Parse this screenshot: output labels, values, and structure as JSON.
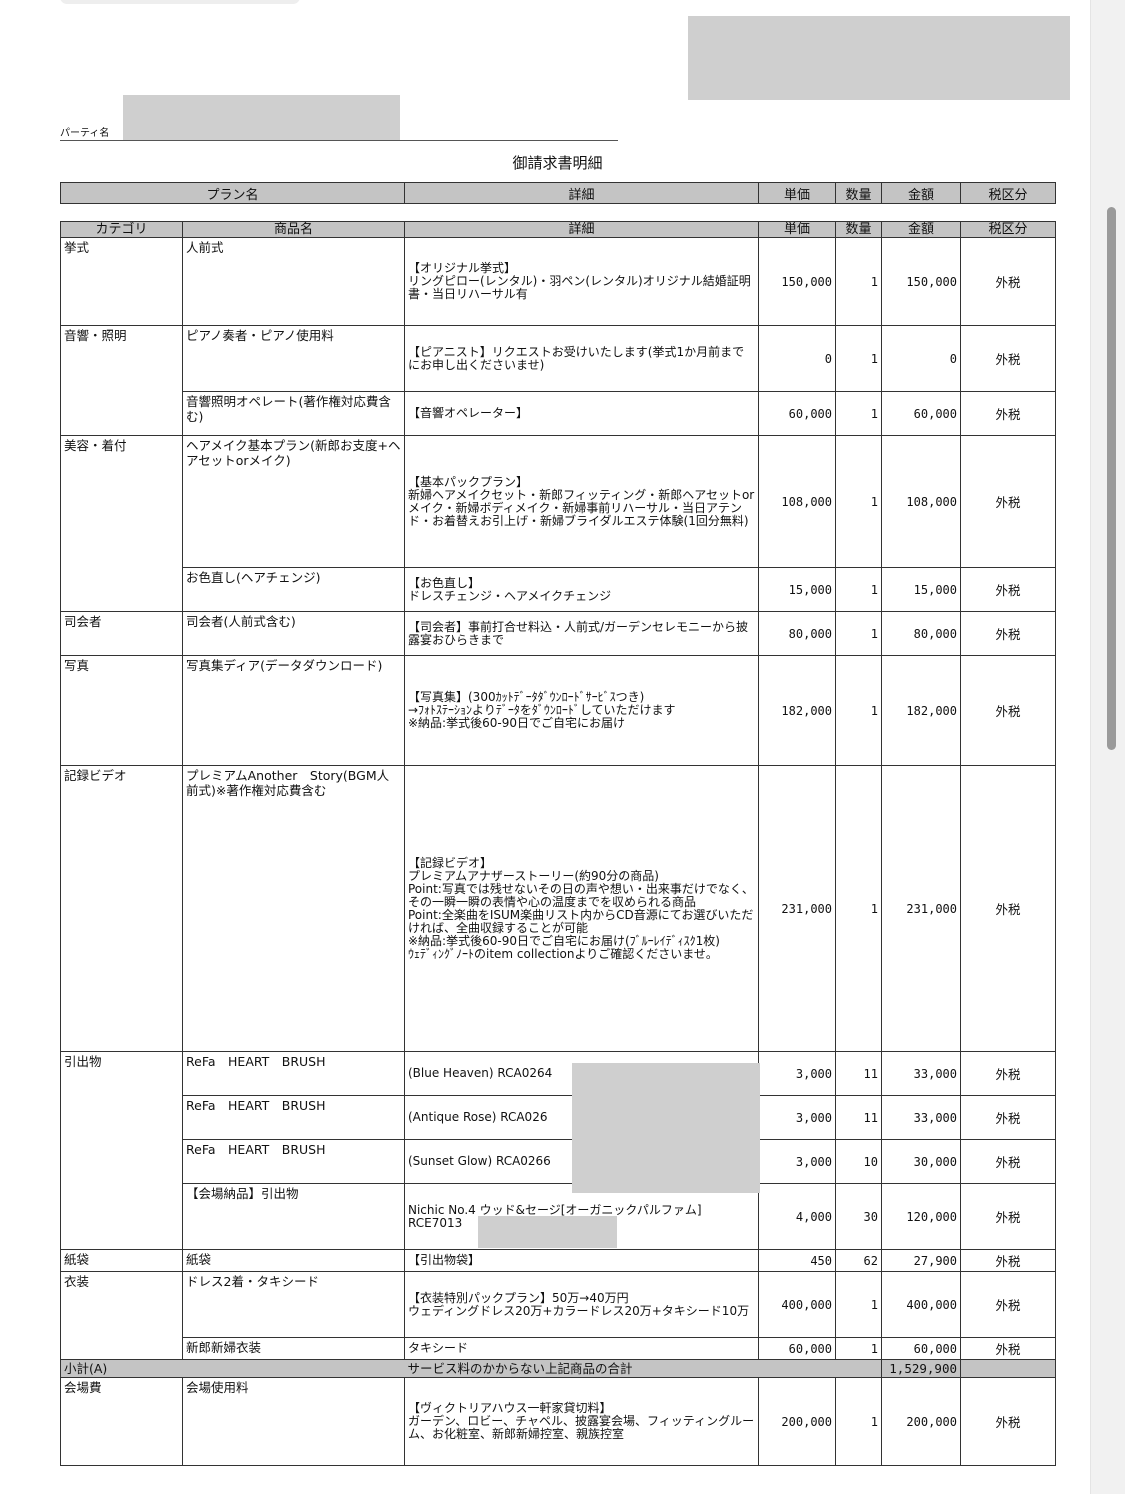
{
  "party_label": "パーティ名",
  "title": "御請求書明細",
  "plan_header": [
    "プラン名",
    "詳細",
    "単価",
    "数量",
    "金額",
    "税区分"
  ],
  "items_header": [
    "カテゴリ",
    "商品名",
    "詳細",
    "単価",
    "数量",
    "金額",
    "税区分"
  ],
  "groups": [
    {
      "category": "挙式",
      "items": [
        {
          "name": "人前式",
          "detail": "【オリジナル挙式】\nリングピロー(レンタル)・羽ペン(レンタル)オリジナル結婚証明書・当日リハーサル有",
          "unit_price": "150,000",
          "qty": "1",
          "amount": "150,000",
          "tax": "外税"
        }
      ]
    },
    {
      "category": "音響・照明",
      "items": [
        {
          "name": "ピアノ奏者・ピアノ使用料",
          "detail": "【ピアニスト】リクエストお受けいたします(挙式1か月前までにお申し出くださいませ)",
          "unit_price": "0",
          "qty": "1",
          "amount": "0",
          "tax": "外税"
        },
        {
          "name": "音響照明オペレート(著作権対応費含む)",
          "detail": "【音響オペレーター】",
          "unit_price": "60,000",
          "qty": "1",
          "amount": "60,000",
          "tax": "外税"
        }
      ]
    },
    {
      "category": "美容・着付",
      "items": [
        {
          "name": "ヘアメイク基本プラン(新郎お支度+ヘアセットorメイク)",
          "detail": "【基本パックプラン】\n新婦ヘアメイクセット・新郎フィッティング・新郎ヘアセットorメイク・新婦ボディメイク・新婦事前リハーサル・当日アテンド・お着替えお引上げ・新婦ブライダルエステ体験(1回分無料)",
          "unit_price": "108,000",
          "qty": "1",
          "amount": "108,000",
          "tax": "外税"
        },
        {
          "name": "お色直し(ヘアチェンジ)",
          "detail": "【お色直し】\nドレスチェンジ・ヘアメイクチェンジ",
          "unit_price": "15,000",
          "qty": "1",
          "amount": "15,000",
          "tax": "外税"
        }
      ]
    },
    {
      "category": "司会者",
      "items": [
        {
          "name": "司会者(人前式含む)",
          "detail": "【司会者】事前打合せ料込・人前式/ガーデンセレモニーから披露宴おひらきまで",
          "unit_price": "80,000",
          "qty": "1",
          "amount": "80,000",
          "tax": "外税"
        }
      ]
    },
    {
      "category": "写真",
      "items": [
        {
          "name": "写真集ディア(データダウンロード)",
          "detail": "【写真集】(300ｶｯﾄﾃﾞｰﾀﾀﾞｳﾝﾛｰﾄﾞｻｰﾋﾞｽつき)\n→ﾌｫﾄｽﾃｰｼｮﾝよりﾃﾞｰﾀをﾀﾞｳﾝﾛｰﾄﾞしていただけます\n※納品:挙式後60-90日でご自宅にお届け",
          "unit_price": "182,000",
          "qty": "1",
          "amount": "182,000",
          "tax": "外税"
        }
      ]
    },
    {
      "category": "記録ビデオ",
      "items": [
        {
          "name": "プレミアムAnother　Story(BGM人前式)※著作権対応費含む",
          "detail": "【記録ビデオ】\nプレミアムアナザーストーリー(約90分の商品)\nPoint:写真では残せないその日の声や想い・出来事だけでなく、その一瞬一瞬の表情や心の温度までを収められる商品\nPoint:全楽曲をISUM楽曲リスト内からCD音源にてお選びいただければ、全曲収録することが可能\n※納品:挙式後60-90日でご自宅にお届け(ﾌﾞﾙｰﾚｲﾃﾞｨｽｸ1枚)\nｳｪﾃﾞｨﾝｸﾞﾉｰﾄのitem collectionよりご確認くださいませ。",
          "unit_price": "231,000",
          "qty": "1",
          "amount": "231,000",
          "tax": "外税"
        }
      ]
    },
    {
      "category": "引出物",
      "items": [
        {
          "name": "ReFa　HEART　BRUSH",
          "detail": "(Blue Heaven) RCA0264",
          "unit_price": "3,000",
          "qty": "11",
          "amount": "33,000",
          "tax": "外税"
        },
        {
          "name": "ReFa　HEART　BRUSH",
          "detail": "(Antique Rose) RCA026",
          "unit_price": "3,000",
          "qty": "11",
          "amount": "33,000",
          "tax": "外税"
        },
        {
          "name": "ReFa　HEART　BRUSH",
          "detail": "(Sunset Glow) RCA0266",
          "unit_price": "3,000",
          "qty": "10",
          "amount": "30,000",
          "tax": "外税"
        },
        {
          "name": "【会場納品】引出物",
          "detail": "Nichic No.4 ウッド&セージ[オーガニックパルファム]\nRCE7013",
          "unit_price": "4,000",
          "qty": "30",
          "amount": "120,000",
          "tax": "外税"
        }
      ]
    },
    {
      "category": "紙袋",
      "items": [
        {
          "name": "紙袋",
          "detail": "【引出物袋】",
          "unit_price": "450",
          "qty": "62",
          "amount": "27,900",
          "tax": "外税"
        }
      ]
    },
    {
      "category": "衣装",
      "items": [
        {
          "name": "ドレス2着・タキシード",
          "detail": "【衣装特別パックプラン】50万→40万円\nウェディングドレス20万+カラードレス20万+タキシード10万",
          "unit_price": "400,000",
          "qty": "1",
          "amount": "400,000",
          "tax": "外税"
        },
        {
          "name": "新郎新婦衣装",
          "detail": "タキシード",
          "unit_price": "60,000",
          "qty": "1",
          "amount": "60,000",
          "tax": "外税"
        }
      ]
    }
  ],
  "subtotal": {
    "label": "小計(A)",
    "detail": "サービス料のかからない上記商品の合計",
    "amount": "1,529,900"
  },
  "after_groups": [
    {
      "category": "会場費",
      "items": [
        {
          "name": "会場使用料",
          "detail": "【ヴィクトリアハウス一軒家貸切料】\nガーデン、ロビー、チャペル、披露宴会場、フィッティングルーム、お化粧室、新郎新婦控室、親族控室",
          "unit_price": "200,000",
          "qty": "1",
          "amount": "200,000",
          "tax": "外税"
        }
      ]
    }
  ]
}
